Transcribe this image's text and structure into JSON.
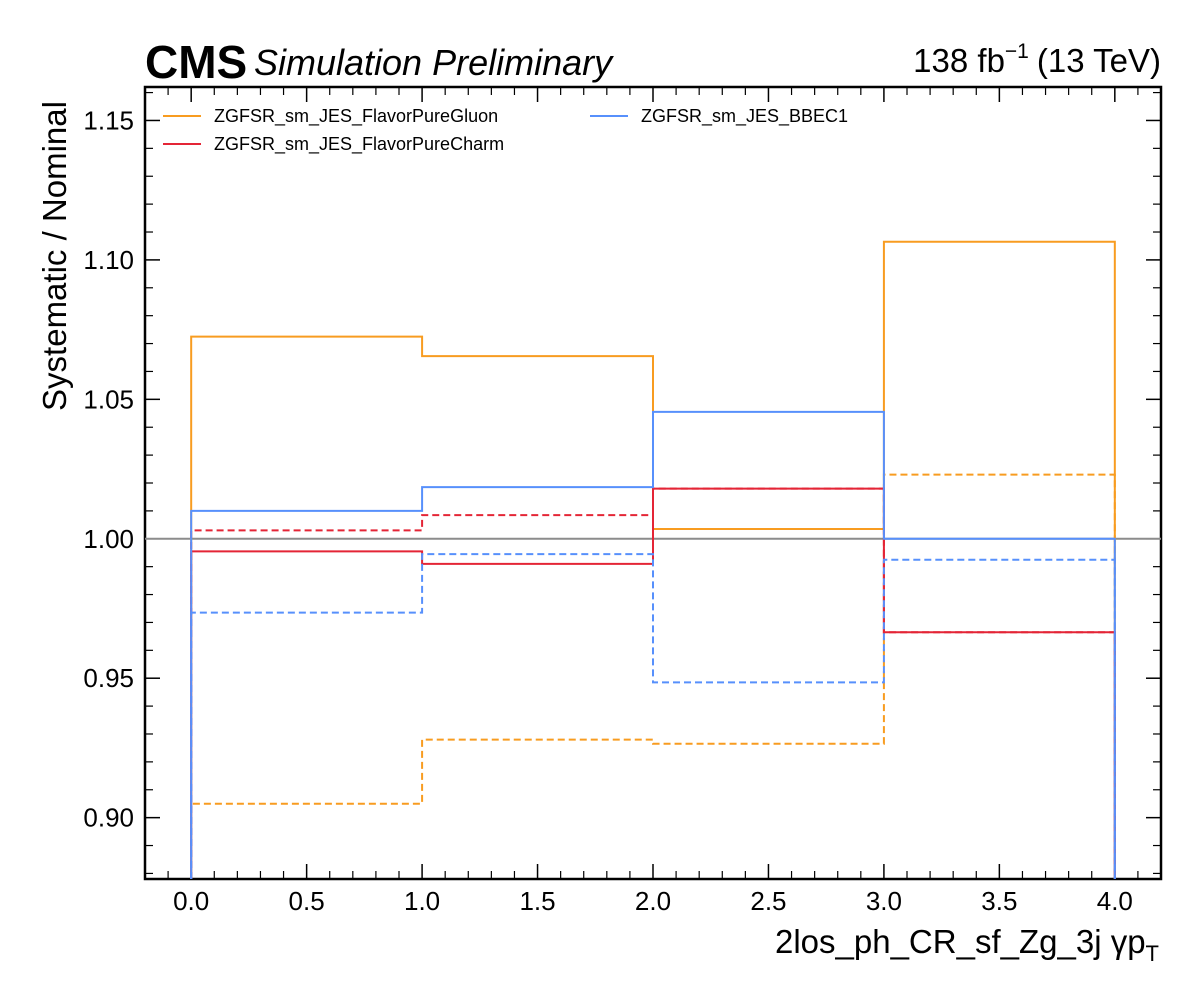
{
  "header": {
    "experiment": "CMS",
    "status": "Simulation Preliminary",
    "lumi_value": "138 fb",
    "lumi_exponent": "−1",
    "energy": "(13 TeV)"
  },
  "chart_data": {
    "type": "line",
    "drawstyle": "steps",
    "xlabel": "2los_ph_CR_sf_Zg_3j   γp",
    "xlabel_subscript": "T",
    "ylabel": "Systematic / Nominal",
    "xlim": [
      -0.2,
      4.2
    ],
    "ylim": [
      0.878,
      1.162
    ],
    "x_ticks": [
      0.0,
      0.5,
      1.0,
      1.5,
      2.0,
      2.5,
      3.0,
      3.5,
      4.0
    ],
    "x_tick_labels": [
      "0.0",
      "0.5",
      "1.0",
      "1.5",
      "2.0",
      "2.5",
      "3.0",
      "3.5",
      "4.0"
    ],
    "y_ticks": [
      0.9,
      0.95,
      1.0,
      1.05,
      1.1,
      1.15
    ],
    "y_tick_labels": [
      "0.90",
      "0.95",
      "1.00",
      "1.05",
      "1.10",
      "1.15"
    ],
    "bin_edges": [
      0,
      1,
      2,
      3,
      4
    ],
    "reference_line": 1.0,
    "reference_color": "#8c8c8c",
    "grid": false,
    "legend_position": "top-left, two columns",
    "series": [
      {
        "name": "ZGFSR_sm_JES_FlavorPureGluon",
        "color": "#f89c20",
        "variation": "up",
        "style": "solid",
        "values": [
          1.0725,
          1.0655,
          1.0035,
          1.1065
        ]
      },
      {
        "name": "ZGFSR_sm_JES_FlavorPureGluon",
        "color": "#f89c20",
        "variation": "down",
        "style": "dashed",
        "values": [
          0.905,
          0.928,
          0.9265,
          1.023
        ]
      },
      {
        "name": "ZGFSR_sm_JES_FlavorPureCharm",
        "color": "#e42536",
        "variation": "up",
        "style": "solid",
        "values": [
          0.9955,
          0.991,
          1.018,
          0.9665
        ]
      },
      {
        "name": "ZGFSR_sm_JES_FlavorPureCharm",
        "color": "#e42536",
        "variation": "down",
        "style": "dashed",
        "values": [
          1.003,
          1.0085,
          1.018,
          0.9665
        ]
      },
      {
        "name": "ZGFSR_sm_JES_BBEC1",
        "color": "#5790fc",
        "variation": "up",
        "style": "solid",
        "values": [
          1.01,
          1.0185,
          1.0455,
          1.0
        ]
      },
      {
        "name": "ZGFSR_sm_JES_BBEC1",
        "color": "#5790fc",
        "variation": "down",
        "style": "dashed",
        "values": [
          0.9735,
          0.9945,
          0.9485,
          0.9925
        ]
      }
    ],
    "legend": [
      {
        "label": "ZGFSR_sm_JES_FlavorPureGluon",
        "color": "#f89c20"
      },
      {
        "label": "ZGFSR_sm_JES_FlavorPureCharm",
        "color": "#e42536"
      },
      {
        "label": "ZGFSR_sm_JES_BBEC1",
        "color": "#5790fc"
      }
    ]
  }
}
